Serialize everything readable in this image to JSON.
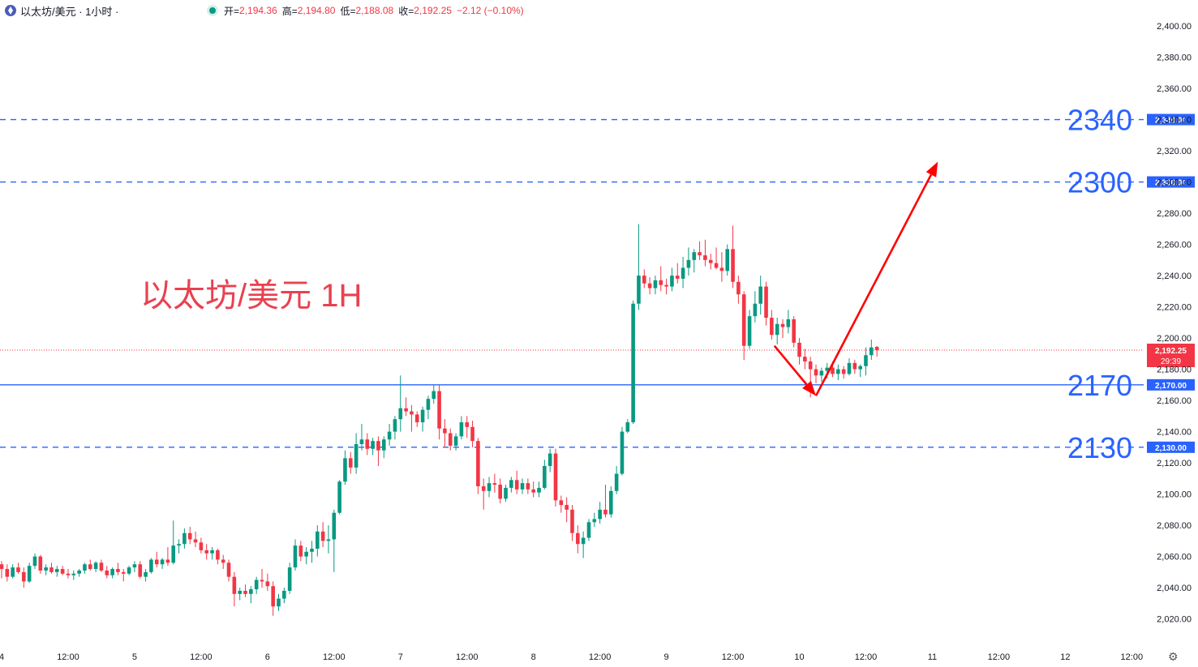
{
  "header": {
    "symbol": "以太坊/美元 · 1小时 ·",
    "open_label": "开=",
    "open": "2,194.36",
    "high_label": "高=",
    "high": "2,194.80",
    "low_label": "低=",
    "low": "2,188.08",
    "close_label": "收=",
    "close": "2,192.25",
    "change": "−2.12 (−0.10%)"
  },
  "chart_data": {
    "type": "candlestick",
    "title": "以太坊/美元 1H",
    "ylim": [
      2010,
      2410
    ],
    "y_ticks": [
      2020,
      2040,
      2060,
      2080,
      2100,
      2120,
      2140,
      2160,
      2180,
      2200,
      2220,
      2240,
      2260,
      2280,
      2300,
      2320,
      2340,
      2360,
      2380,
      2400
    ],
    "x_labels": [
      "4",
      "12:00",
      "5",
      "12:00",
      "6",
      "12:00",
      "7",
      "12:00",
      "8",
      "12:00",
      "9",
      "12:00",
      "10",
      "12:00",
      "11",
      "12:00",
      "12",
      "12:00"
    ],
    "x_label_hours": [
      0,
      12,
      24,
      36,
      48,
      60,
      72,
      84,
      96,
      108,
      120,
      132,
      144,
      156,
      168,
      180,
      192,
      204
    ],
    "levels": [
      {
        "value": 2340,
        "label": "2340",
        "axis_label": "2,340.00",
        "style": "dashed"
      },
      {
        "value": 2300,
        "label": "2300",
        "axis_label": "2,300.00",
        "style": "dashed"
      },
      {
        "value": 2170,
        "label": "2170",
        "axis_label": "2,170.00",
        "style": "solid"
      },
      {
        "value": 2130,
        "label": "2130",
        "axis_label": "2,130.00",
        "style": "dashed"
      }
    ],
    "current_price": 2192.25,
    "current_price_label": "2,192.25",
    "countdown": "29:39",
    "arrows": [
      {
        "from": [
          139.5,
          2195
        ],
        "to": [
          147,
          2163
        ]
      },
      {
        "from": [
          147,
          2163
        ],
        "to": [
          169,
          2313
        ]
      }
    ],
    "candles": [
      [
        2055,
        2057,
        2046,
        2052
      ],
      [
        2052,
        2055,
        2044,
        2047
      ],
      [
        2047,
        2055,
        2046,
        2053
      ],
      [
        2053,
        2056,
        2049,
        2050
      ],
      [
        2050,
        2053,
        2040,
        2044
      ],
      [
        2044,
        2056,
        2043,
        2054
      ],
      [
        2054,
        2062,
        2052,
        2060
      ],
      [
        2060,
        2061,
        2049,
        2051
      ],
      [
        2051,
        2055,
        2048,
        2053
      ],
      [
        2053,
        2056,
        2049,
        2050
      ],
      [
        2050,
        2054,
        2047,
        2052
      ],
      [
        2052,
        2054,
        2048,
        2049
      ],
      [
        2049,
        2052,
        2046,
        2048
      ],
      [
        2048,
        2051,
        2045,
        2049
      ],
      [
        2049,
        2052,
        2047,
        2051
      ],
      [
        2051,
        2056,
        2049,
        2055
      ],
      [
        2055,
        2058,
        2051,
        2052
      ],
      [
        2052,
        2057,
        2050,
        2056
      ],
      [
        2056,
        2058,
        2050,
        2051
      ],
      [
        2051,
        2054,
        2046,
        2048
      ],
      [
        2048,
        2053,
        2046,
        2052
      ],
      [
        2052,
        2056,
        2048,
        2050
      ],
      [
        2050,
        2052,
        2044,
        2049
      ],
      [
        2049,
        2054,
        2048,
        2053
      ],
      [
        2053,
        2057,
        2050,
        2055
      ],
      [
        2055,
        2057,
        2046,
        2047
      ],
      [
        2047,
        2052,
        2044,
        2050
      ],
      [
        2050,
        2059,
        2049,
        2058
      ],
      [
        2058,
        2063,
        2053,
        2055
      ],
      [
        2055,
        2059,
        2052,
        2058
      ],
      [
        2058,
        2066,
        2054,
        2056
      ],
      [
        2056,
        2083,
        2055,
        2067
      ],
      [
        2067,
        2071,
        2062,
        2068
      ],
      [
        2068,
        2078,
        2065,
        2075
      ],
      [
        2075,
        2079,
        2068,
        2071
      ],
      [
        2071,
        2076,
        2066,
        2069
      ],
      [
        2069,
        2072,
        2062,
        2064
      ],
      [
        2064,
        2068,
        2058,
        2062
      ],
      [
        2062,
        2066,
        2058,
        2064
      ],
      [
        2064,
        2065,
        2055,
        2058
      ],
      [
        2058,
        2061,
        2052,
        2056
      ],
      [
        2056,
        2058,
        2044,
        2047
      ],
      [
        2047,
        2050,
        2028,
        2036
      ],
      [
        2036,
        2040,
        2032,
        2038
      ],
      [
        2038,
        2042,
        2034,
        2036
      ],
      [
        2036,
        2041,
        2030,
        2039
      ],
      [
        2039,
        2047,
        2036,
        2045
      ],
      [
        2045,
        2052,
        2040,
        2044
      ],
      [
        2044,
        2049,
        2038,
        2041
      ],
      [
        2041,
        2044,
        2022,
        2028
      ],
      [
        2028,
        2036,
        2025,
        2033
      ],
      [
        2033,
        2040,
        2030,
        2038
      ],
      [
        2038,
        2056,
        2036,
        2053
      ],
      [
        2053,
        2071,
        2051,
        2067
      ],
      [
        2067,
        2070,
        2057,
        2060
      ],
      [
        2060,
        2066,
        2055,
        2063
      ],
      [
        2063,
        2070,
        2056,
        2065
      ],
      [
        2065,
        2080,
        2060,
        2076
      ],
      [
        2076,
        2082,
        2066,
        2070
      ],
      [
        2070,
        2080,
        2062,
        2071
      ],
      [
        2071,
        2090,
        2050,
        2088
      ],
      [
        2088,
        2109,
        2087,
        2108
      ],
      [
        2108,
        2128,
        2106,
        2123
      ],
      [
        2123,
        2127,
        2113,
        2117
      ],
      [
        2117,
        2139,
        2113,
        2132
      ],
      [
        2132,
        2145,
        2128,
        2135
      ],
      [
        2135,
        2139,
        2125,
        2129
      ],
      [
        2129,
        2136,
        2125,
        2134
      ],
      [
        2134,
        2137,
        2118,
        2128
      ],
      [
        2128,
        2137,
        2123,
        2135
      ],
      [
        2135,
        2145,
        2131,
        2140
      ],
      [
        2140,
        2150,
        2135,
        2148
      ],
      [
        2148,
        2176,
        2140,
        2155
      ],
      [
        2155,
        2162,
        2150,
        2153
      ],
      [
        2153,
        2157,
        2140,
        2151
      ],
      [
        2151,
        2153,
        2143,
        2146
      ],
      [
        2146,
        2156,
        2140,
        2154
      ],
      [
        2154,
        2163,
        2148,
        2161
      ],
      [
        2161,
        2170,
        2158,
        2166
      ],
      [
        2166,
        2170,
        2135,
        2142
      ],
      [
        2142,
        2148,
        2130,
        2139
      ],
      [
        2139,
        2142,
        2128,
        2131
      ],
      [
        2131,
        2139,
        2128,
        2137
      ],
      [
        2137,
        2150,
        2135,
        2146
      ],
      [
        2146,
        2150,
        2136,
        2143
      ],
      [
        2143,
        2147,
        2130,
        2134
      ],
      [
        2134,
        2136,
        2100,
        2105
      ],
      [
        2105,
        2110,
        2090,
        2102
      ],
      [
        2102,
        2111,
        2098,
        2107
      ],
      [
        2107,
        2113,
        2101,
        2106
      ],
      [
        2106,
        2110,
        2094,
        2097
      ],
      [
        2097,
        2106,
        2095,
        2104
      ],
      [
        2104,
        2111,
        2101,
        2109
      ],
      [
        2109,
        2115,
        2100,
        2103
      ],
      [
        2103,
        2110,
        2100,
        2107
      ],
      [
        2107,
        2110,
        2100,
        2103
      ],
      [
        2103,
        2108,
        2098,
        2101
      ],
      [
        2101,
        2108,
        2098,
        2104
      ],
      [
        2104,
        2122,
        2103,
        2118
      ],
      [
        2118,
        2129,
        2114,
        2126
      ],
      [
        2126,
        2129,
        2092,
        2096
      ],
      [
        2096,
        2099,
        2088,
        2093
      ],
      [
        2093,
        2098,
        2082,
        2090
      ],
      [
        2090,
        2093,
        2070,
        2075
      ],
      [
        2075,
        2080,
        2062,
        2068
      ],
      [
        2068,
        2076,
        2059,
        2072
      ],
      [
        2072,
        2084,
        2070,
        2082
      ],
      [
        2082,
        2088,
        2079,
        2084
      ],
      [
        2084,
        2095,
        2081,
        2090
      ],
      [
        2090,
        2106,
        2085,
        2087
      ],
      [
        2087,
        2105,
        2085,
        2102
      ],
      [
        2102,
        2118,
        2100,
        2113
      ],
      [
        2113,
        2143,
        2112,
        2140
      ],
      [
        2140,
        2148,
        2139,
        2146
      ],
      [
        2146,
        2224,
        2145,
        2222
      ],
      [
        2222,
        2273,
        2218,
        2240
      ],
      [
        2240,
        2244,
        2232,
        2235
      ],
      [
        2235,
        2239,
        2228,
        2232
      ],
      [
        2232,
        2240,
        2228,
        2237
      ],
      [
        2237,
        2246,
        2230,
        2234
      ],
      [
        2234,
        2238,
        2228,
        2233
      ],
      [
        2233,
        2245,
        2230,
        2240
      ],
      [
        2240,
        2248,
        2235,
        2238
      ],
      [
        2238,
        2252,
        2232,
        2245
      ],
      [
        2245,
        2258,
        2240,
        2250
      ],
      [
        2250,
        2257,
        2242,
        2255
      ],
      [
        2255,
        2262,
        2250,
        2253
      ],
      [
        2253,
        2263,
        2246,
        2250
      ],
      [
        2250,
        2254,
        2244,
        2248
      ],
      [
        2248,
        2258,
        2244,
        2245
      ],
      [
        2245,
        2255,
        2236,
        2243
      ],
      [
        2243,
        2260,
        2240,
        2257
      ],
      [
        2257,
        2272,
        2232,
        2236
      ],
      [
        2236,
        2240,
        2222,
        2228
      ],
      [
        2228,
        2230,
        2186,
        2195
      ],
      [
        2195,
        2218,
        2193,
        2214
      ],
      [
        2214,
        2230,
        2210,
        2222
      ],
      [
        2222,
        2240,
        2215,
        2233
      ],
      [
        2233,
        2236,
        2208,
        2213
      ],
      [
        2213,
        2218,
        2199,
        2202
      ],
      [
        2202,
        2213,
        2196,
        2209
      ],
      [
        2209,
        2212,
        2200,
        2207
      ],
      [
        2207,
        2218,
        2203,
        2212
      ],
      [
        2212,
        2214,
        2194,
        2197
      ],
      [
        2197,
        2200,
        2183,
        2188
      ],
      [
        2188,
        2193,
        2180,
        2185
      ],
      [
        2185,
        2188,
        2162,
        2180
      ],
      [
        2180,
        2183,
        2171,
        2176
      ],
      [
        2176,
        2181,
        2172,
        2179
      ],
      [
        2179,
        2184,
        2174,
        2181
      ],
      [
        2181,
        2185,
        2175,
        2177
      ],
      [
        2177,
        2183,
        2173,
        2180
      ],
      [
        2180,
        2182,
        2174,
        2177
      ],
      [
        2177,
        2187,
        2176,
        2184
      ],
      [
        2184,
        2186,
        2177,
        2180
      ],
      [
        2180,
        2183,
        2175,
        2182
      ],
      [
        2182,
        2194,
        2176,
        2189
      ],
      [
        2189,
        2199,
        2186,
        2194
      ],
      [
        2194.36,
        2194.8,
        2188.08,
        2192.25
      ]
    ]
  },
  "colors": {
    "up": "#089981",
    "down": "#f23645",
    "level": "#2962ff",
    "arrow": "#ff0000",
    "label_blue": "#2962ff",
    "title_red": "#e9414f",
    "grid_text": "#131722"
  }
}
